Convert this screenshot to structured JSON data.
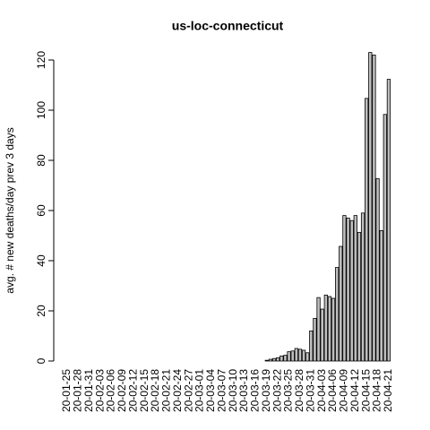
{
  "chart_data": {
    "type": "bar",
    "title": "us-loc-connecticut",
    "y_label": "avg. # new deaths/day prev  3  days",
    "categories": [
      "20-01-25",
      null,
      null,
      "20-01-28",
      null,
      null,
      "20-01-31",
      null,
      null,
      "20-02-03",
      null,
      null,
      "20-02-06",
      null,
      null,
      "20-02-09",
      null,
      null,
      "20-02-12",
      null,
      null,
      "20-02-15",
      null,
      null,
      "20-02-18",
      null,
      null,
      "20-02-21",
      null,
      null,
      "20-02-24",
      null,
      null,
      "20-02-27",
      null,
      null,
      "20-03-01",
      null,
      null,
      "20-03-04",
      null,
      null,
      "20-03-07",
      null,
      null,
      "20-03-10",
      null,
      null,
      "20-03-13",
      null,
      null,
      "20-03-16",
      null,
      null,
      "20-03-19",
      null,
      null,
      "20-03-22",
      null,
      null,
      "20-03-25",
      null,
      null,
      "20-03-28",
      null,
      null,
      "20-03-31",
      null,
      null,
      "20-04-03",
      null,
      null,
      "20-04-06",
      null,
      null,
      "20-04-09",
      null,
      null,
      "20-04-12",
      null,
      null,
      "20-04-15",
      null,
      null,
      "20-04-18",
      null,
      null,
      "20-04-21"
    ],
    "values": [
      0,
      0,
      0,
      0,
      0,
      0,
      0,
      0,
      0,
      0,
      0,
      0,
      0,
      0,
      0,
      0,
      0,
      0,
      0,
      0,
      0,
      0,
      0,
      0,
      0,
      0,
      0,
      0,
      0,
      0,
      0,
      0,
      0,
      0,
      0,
      0,
      0,
      0,
      0,
      0,
      0,
      0,
      0,
      0,
      0,
      0,
      0,
      0,
      0,
      0,
      0,
      0,
      0,
      0,
      0.3,
      0.7,
      1,
      1.3,
      2,
      2.3,
      3.7,
      4,
      5,
      4.7,
      4.3,
      3.3,
      12,
      17,
      25.3,
      20.7,
      26.3,
      25.7,
      25,
      37.3,
      45.7,
      58,
      57,
      56,
      58,
      51.3,
      59,
      104.7,
      123,
      122,
      72.7,
      52,
      98.3,
      112.3
    ],
    "color": "#bebebe",
    "ylim": [
      0,
      120
    ],
    "yticks": [
      0,
      20,
      40,
      60,
      80,
      100,
      120
    ]
  }
}
